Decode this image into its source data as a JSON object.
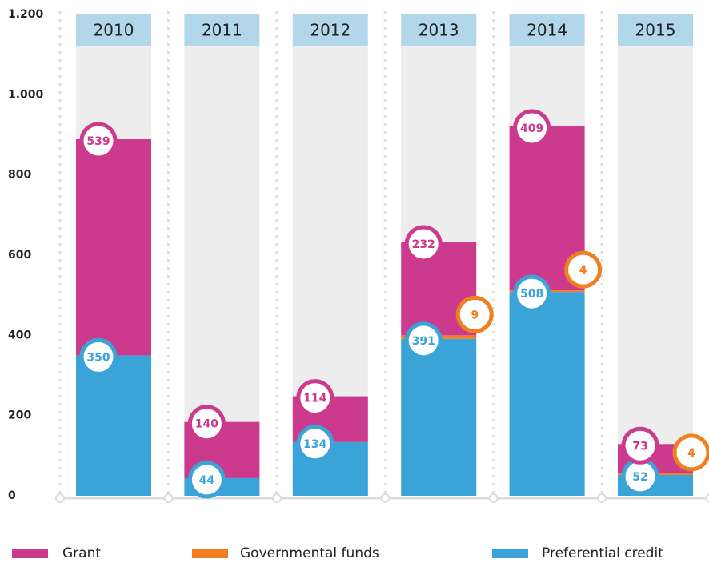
{
  "chart_data": {
    "type": "stacked-bar",
    "categories": [
      "2010",
      "2011",
      "2012",
      "2013",
      "2014",
      "2015"
    ],
    "series": [
      {
        "name": "Grant",
        "color": "#cc3a8e",
        "values": [
          539,
          140,
          114,
          232,
          409,
          73
        ]
      },
      {
        "name": "Governmental funds",
        "color": "#f07f22",
        "values": [
          null,
          null,
          null,
          9,
          4,
          4
        ]
      },
      {
        "name": "Preferential credit",
        "color": "#3aa3d8",
        "values": [
          350,
          44,
          134,
          391,
          508,
          52
        ]
      }
    ],
    "ylim": [
      0,
      1200
    ],
    "yticks": [
      0,
      200,
      400,
      600,
      800,
      {
        "value": 1000,
        "label": "1.000"
      },
      {
        "value": 1200,
        "label": "1.200"
      }
    ],
    "legend": "bottom"
  }
}
